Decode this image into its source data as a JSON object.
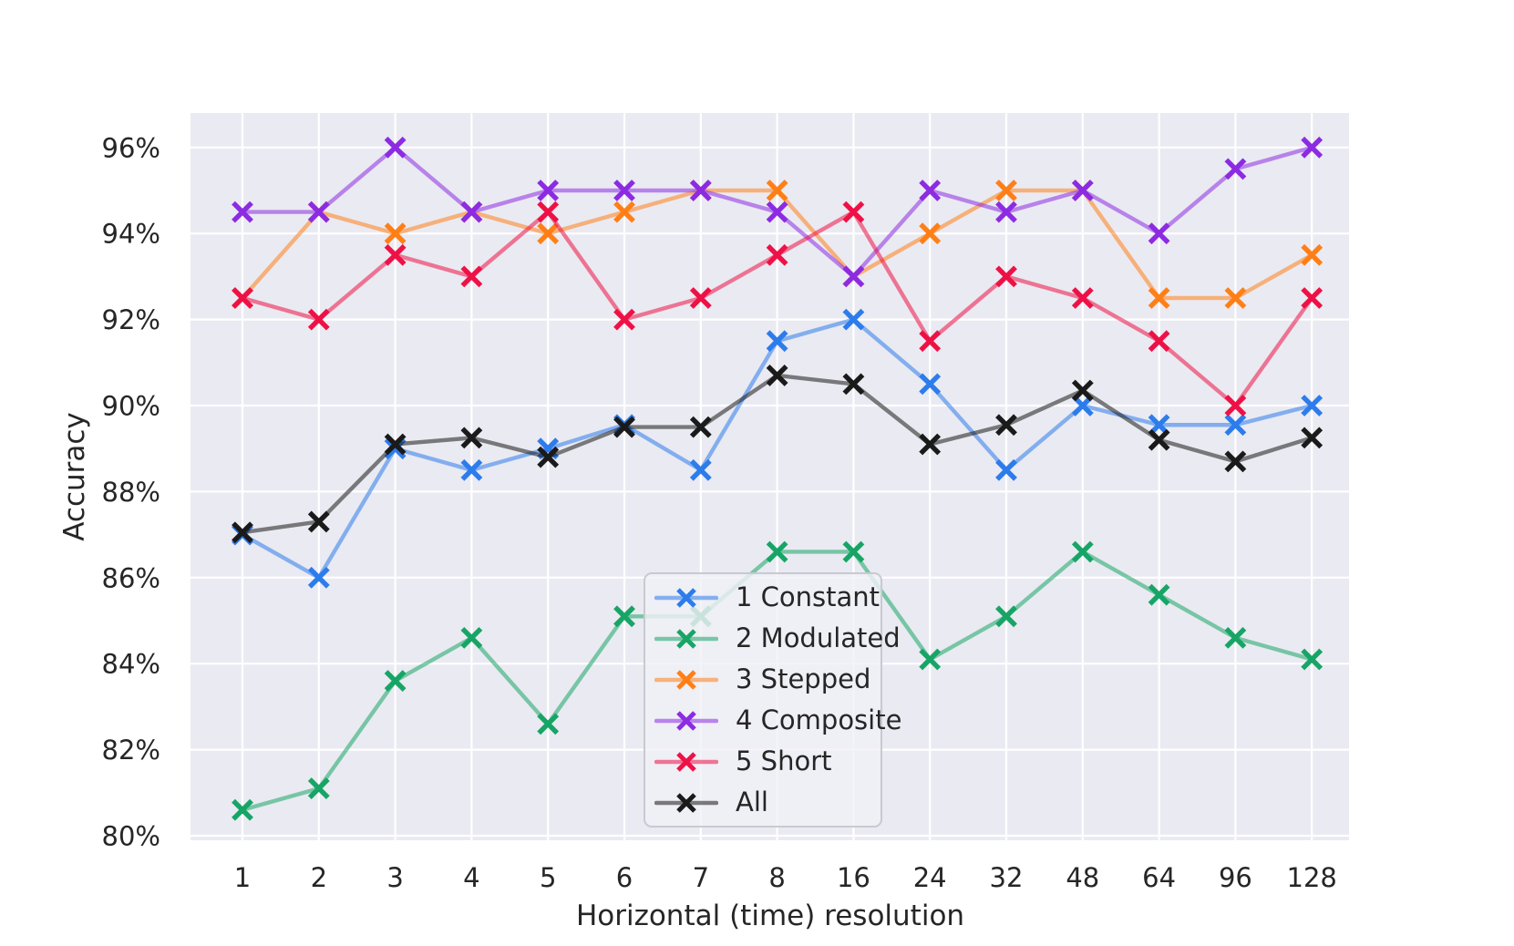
{
  "figure": {
    "plot_background": "#eaeaf2",
    "grid_color": "#ffffff",
    "text_color": "#262626",
    "legend_background": "rgba(240,240,246,0.82)",
    "legend_border": "#c9c9d0"
  },
  "chart_data": {
    "type": "line",
    "title": "",
    "xlabel": "Horizontal (time) resolution",
    "ylabel": "Accuracy",
    "categories": [
      "1",
      "2",
      "3",
      "4",
      "5",
      "6",
      "7",
      "8",
      "16",
      "24",
      "32",
      "48",
      "64",
      "96",
      "128"
    ],
    "y_ticks": [
      {
        "value": 80,
        "label": "80%"
      },
      {
        "value": 82,
        "label": "82%"
      },
      {
        "value": 84,
        "label": "84%"
      },
      {
        "value": 86,
        "label": "86%"
      },
      {
        "value": 88,
        "label": "88%"
      },
      {
        "value": 90,
        "label": "90%"
      },
      {
        "value": 92,
        "label": "92%"
      },
      {
        "value": 94,
        "label": "94%"
      },
      {
        "value": 96,
        "label": "96%"
      }
    ],
    "ylim": [
      80,
      96.8
    ],
    "grid": true,
    "marker": "x",
    "legend_position": "inside lower-center",
    "series": [
      {
        "name": "1 Constant",
        "color": "#2d7ceb",
        "values": [
          87.0,
          86.0,
          89.0,
          88.5,
          89.0,
          89.55,
          88.5,
          91.5,
          92.0,
          90.5,
          88.5,
          90.0,
          89.55,
          89.55,
          90.0
        ]
      },
      {
        "name": "2 Modulated",
        "color": "#17a566",
        "values": [
          80.6,
          81.1,
          83.6,
          84.6,
          82.6,
          85.1,
          85.1,
          86.6,
          86.6,
          84.1,
          85.1,
          86.6,
          85.6,
          84.6,
          84.1
        ]
      },
      {
        "name": "3 Stepped",
        "color": "#ff7f17",
        "values": [
          92.5,
          94.5,
          94.0,
          94.5,
          94.0,
          94.5,
          95.0,
          95.0,
          93.0,
          94.0,
          95.0,
          95.0,
          92.5,
          92.5,
          93.5
        ]
      },
      {
        "name": "4 Composite",
        "color": "#8c2be2",
        "values": [
          94.5,
          94.5,
          96.0,
          94.5,
          95.0,
          95.0,
          95.0,
          94.5,
          93.0,
          95.0,
          94.5,
          95.0,
          94.0,
          95.5,
          96.0
        ]
      },
      {
        "name": "5 Short",
        "color": "#ee1146",
        "values": [
          92.5,
          92.0,
          93.5,
          93.0,
          94.5,
          92.0,
          92.5,
          93.5,
          94.5,
          91.5,
          93.0,
          92.5,
          91.5,
          90.0,
          92.5
        ]
      },
      {
        "name": "All",
        "color": "#1a1a1a",
        "values": [
          87.05,
          87.3,
          89.1,
          89.25,
          88.8,
          89.5,
          89.5,
          90.7,
          90.5,
          89.1,
          89.55,
          90.35,
          89.2,
          88.7,
          89.25
        ]
      }
    ]
  }
}
